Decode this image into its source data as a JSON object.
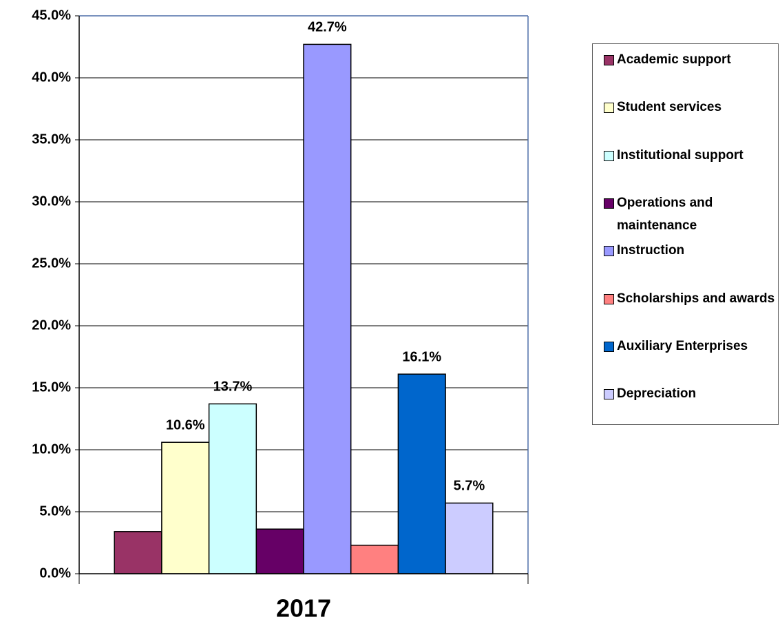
{
  "chart_data": {
    "type": "bar",
    "categories": [
      "2017"
    ],
    "series": [
      {
        "name": "Academic support",
        "color": "#993366",
        "values": [
          3.4
        ]
      },
      {
        "name": "Student services",
        "color": "#ffffcc",
        "values": [
          10.6
        ],
        "value_labels": [
          "10.6%"
        ]
      },
      {
        "name": "Institutional support",
        "color": "#ccffff",
        "values": [
          13.7
        ],
        "value_labels": [
          "13.7%"
        ]
      },
      {
        "name": "Operations and maintenance",
        "color": "#660066",
        "values": [
          3.6
        ]
      },
      {
        "name": "Instruction",
        "color": "#9999ff",
        "values": [
          42.7
        ],
        "value_labels": [
          "42.7%"
        ]
      },
      {
        "name": "Scholarships and awards",
        "color": "#ff8080",
        "values": [
          2.3
        ]
      },
      {
        "name": "Auxiliary Enterprises",
        "color": "#0066cc",
        "values": [
          16.1
        ],
        "value_labels": [
          "16.1%"
        ]
      },
      {
        "name": "Depreciation",
        "color": "#ccccff",
        "values": [
          5.7
        ],
        "value_labels": [
          "5.7%"
        ]
      }
    ],
    "ylim": [
      0,
      45
    ],
    "yticks": [
      {
        "value": 0,
        "label": "0.0%"
      },
      {
        "value": 5,
        "label": "5.0%"
      },
      {
        "value": 10,
        "label": "10.0%"
      },
      {
        "value": 15,
        "label": "15.0%"
      },
      {
        "value": 20,
        "label": "20.0%"
      },
      {
        "value": 25,
        "label": "25.0%"
      },
      {
        "value": 30,
        "label": "30.0%"
      },
      {
        "value": 35,
        "label": "35.0%"
      },
      {
        "value": 40,
        "label": "40.0%"
      },
      {
        "value": 45,
        "label": "45.0%"
      }
    ],
    "grid": true,
    "legend": "right"
  }
}
